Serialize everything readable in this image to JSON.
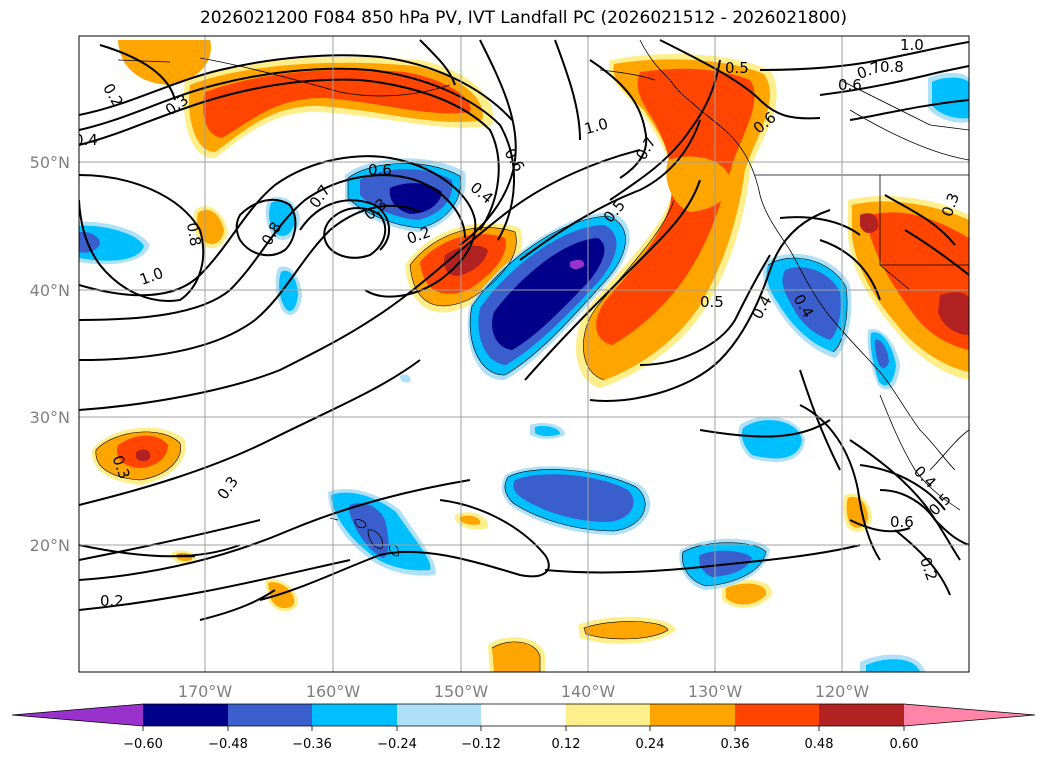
{
  "title": "2026021200 F084 850 hPa PV, IVT Landfall PC (2026021512 - 2026021800)",
  "map": {
    "lon_labels": [
      "170°W",
      "160°W",
      "150°W",
      "140°W",
      "130°W",
      "120°W"
    ],
    "lat_labels": [
      "50°N",
      "40°N",
      "30°N",
      "20°N"
    ],
    "contour_labels": [
      "0.2",
      "0.3",
      "0.4",
      "0.5",
      "0.6",
      "0.7",
      "0.8",
      "1.0"
    ]
  },
  "colorbar": {
    "ticks": [
      "−0.60",
      "−0.48",
      "−0.36",
      "−0.24",
      "−0.12",
      "0.12",
      "0.24",
      "0.36",
      "0.48",
      "0.60"
    ],
    "colors": {
      "lt_neg060": "#9932cc",
      "neg060_048": "#00008b",
      "neg048_036": "#3a5fcd",
      "neg036_024": "#00bfff",
      "neg024_012": "#aee0f8",
      "neg012_012": "#ffffff",
      "p012_024": "#ffee8c",
      "p024_036": "#ffa500",
      "p036_048": "#ff4500",
      "p048_060": "#b22222",
      "gt060": "#ff85a8"
    }
  }
}
